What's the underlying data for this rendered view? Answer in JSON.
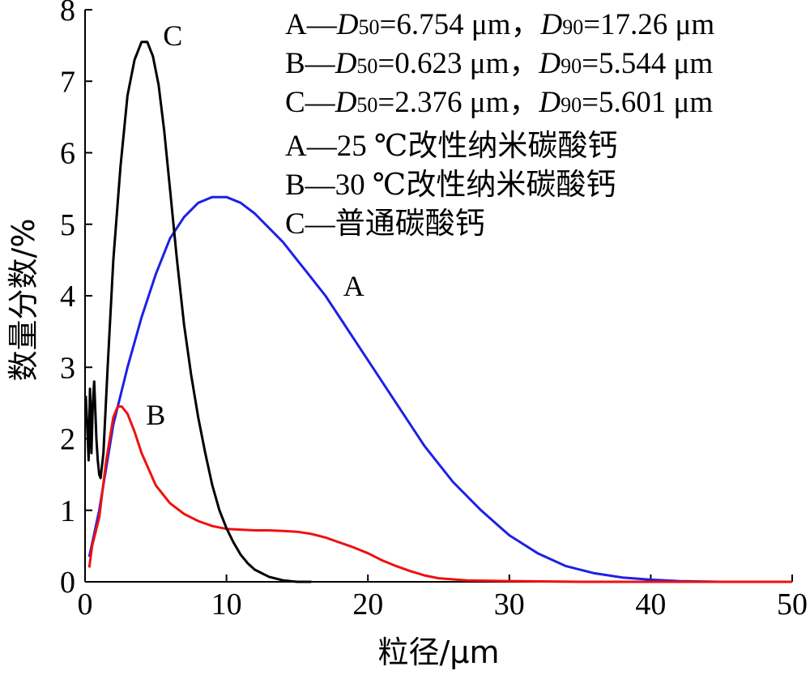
{
  "chart_data": {
    "type": "line",
    "xlabel": "粒径/μm",
    "ylabel": "数量分数/%",
    "xlim": [
      0,
      50
    ],
    "ylim": [
      0,
      8
    ],
    "xticks": [
      0,
      10,
      20,
      30,
      40,
      50
    ],
    "yticks": [
      0,
      1,
      2,
      3,
      4,
      5,
      6,
      7,
      8
    ],
    "grid": false,
    "legend_position": "top-right",
    "legend_lines": [
      {
        "pre": "A—",
        "d50_sym": "D",
        "d50_sub": "50",
        "d50_val": "=6.754 μm，",
        "d90_sym": "D",
        "d90_sub": "90",
        "d90_val": "=17.26 μm"
      },
      {
        "pre": "B—",
        "d50_sym": "D",
        "d50_sub": "50",
        "d50_val": "=0.623 μm，",
        "d90_sym": "D",
        "d90_sub": "90",
        "d90_val": "=5.544 μm"
      },
      {
        "pre": "C—",
        "d50_sym": "D",
        "d50_sub": "50",
        "d50_val": "=2.376 μm，",
        "d90_sym": "D",
        "d90_sub": "90",
        "d90_val": "=5.601 μm"
      }
    ],
    "legend_desc": [
      "A—25 ℃改性纳米碳酸钙",
      "B—30 ℃改性纳米碳酸钙",
      "C—普通碳酸钙"
    ],
    "series": [
      {
        "name": "A",
        "color": "#1f1fe6",
        "label_at": [
          19,
          4.0
        ],
        "x": [
          0.3,
          1,
          2,
          3,
          4,
          5,
          6,
          7,
          8,
          9,
          10,
          11,
          12,
          13,
          14,
          15,
          16,
          17,
          18,
          19,
          20,
          22,
          24,
          26,
          28,
          30,
          32,
          34,
          36,
          38,
          40,
          42,
          45,
          50
        ],
        "y": [
          0.35,
          1.0,
          2.2,
          3.0,
          3.7,
          4.3,
          4.8,
          5.1,
          5.3,
          5.38,
          5.38,
          5.3,
          5.15,
          4.95,
          4.75,
          4.5,
          4.25,
          4.0,
          3.7,
          3.4,
          3.1,
          2.5,
          1.9,
          1.4,
          1.0,
          0.65,
          0.4,
          0.22,
          0.12,
          0.06,
          0.03,
          0.01,
          0.0,
          0.0
        ]
      },
      {
        "name": "B",
        "color": "#ee1111",
        "label_at": [
          5,
          2.2
        ],
        "x": [
          0.3,
          0.5,
          1,
          1.5,
          2,
          2.3,
          2.6,
          3,
          3.5,
          4,
          5,
          6,
          7,
          8,
          9,
          10,
          11,
          12,
          13,
          14,
          15,
          16,
          17,
          18,
          19,
          20,
          21,
          22,
          23,
          24,
          25,
          27,
          30,
          35,
          40,
          45,
          50
        ],
        "y": [
          0.2,
          0.5,
          0.9,
          1.7,
          2.3,
          2.45,
          2.45,
          2.35,
          2.1,
          1.8,
          1.35,
          1.1,
          0.95,
          0.85,
          0.78,
          0.74,
          0.73,
          0.72,
          0.72,
          0.71,
          0.7,
          0.67,
          0.62,
          0.55,
          0.48,
          0.4,
          0.3,
          0.22,
          0.15,
          0.09,
          0.05,
          0.02,
          0.01,
          0.0,
          0.0,
          0.0,
          0.0
        ]
      },
      {
        "name": "C",
        "color": "#000000",
        "label_at": [
          6.2,
          7.5
        ],
        "x": [
          0.05,
          0.15,
          0.25,
          0.35,
          0.45,
          0.55,
          0.65,
          0.8,
          0.9,
          1.0,
          1.1,
          1.3,
          1.6,
          2.0,
          2.5,
          3.0,
          3.5,
          4.0,
          4.4,
          4.8,
          5.2,
          5.6,
          6.0,
          6.5,
          7.0,
          7.5,
          8.0,
          8.5,
          9.0,
          9.5,
          10.0,
          10.5,
          11.0,
          11.5,
          12.0,
          13.0,
          14.0,
          15.0,
          16.0
        ],
        "y": [
          2.6,
          2.2,
          1.7,
          2.7,
          1.8,
          2.5,
          2.8,
          2.0,
          1.7,
          1.5,
          1.45,
          1.8,
          3.0,
          4.5,
          5.8,
          6.8,
          7.3,
          7.55,
          7.55,
          7.35,
          6.95,
          6.3,
          5.5,
          4.5,
          3.6,
          2.9,
          2.3,
          1.8,
          1.35,
          1.0,
          0.75,
          0.55,
          0.38,
          0.26,
          0.17,
          0.07,
          0.02,
          0.0,
          0.0
        ]
      }
    ]
  }
}
